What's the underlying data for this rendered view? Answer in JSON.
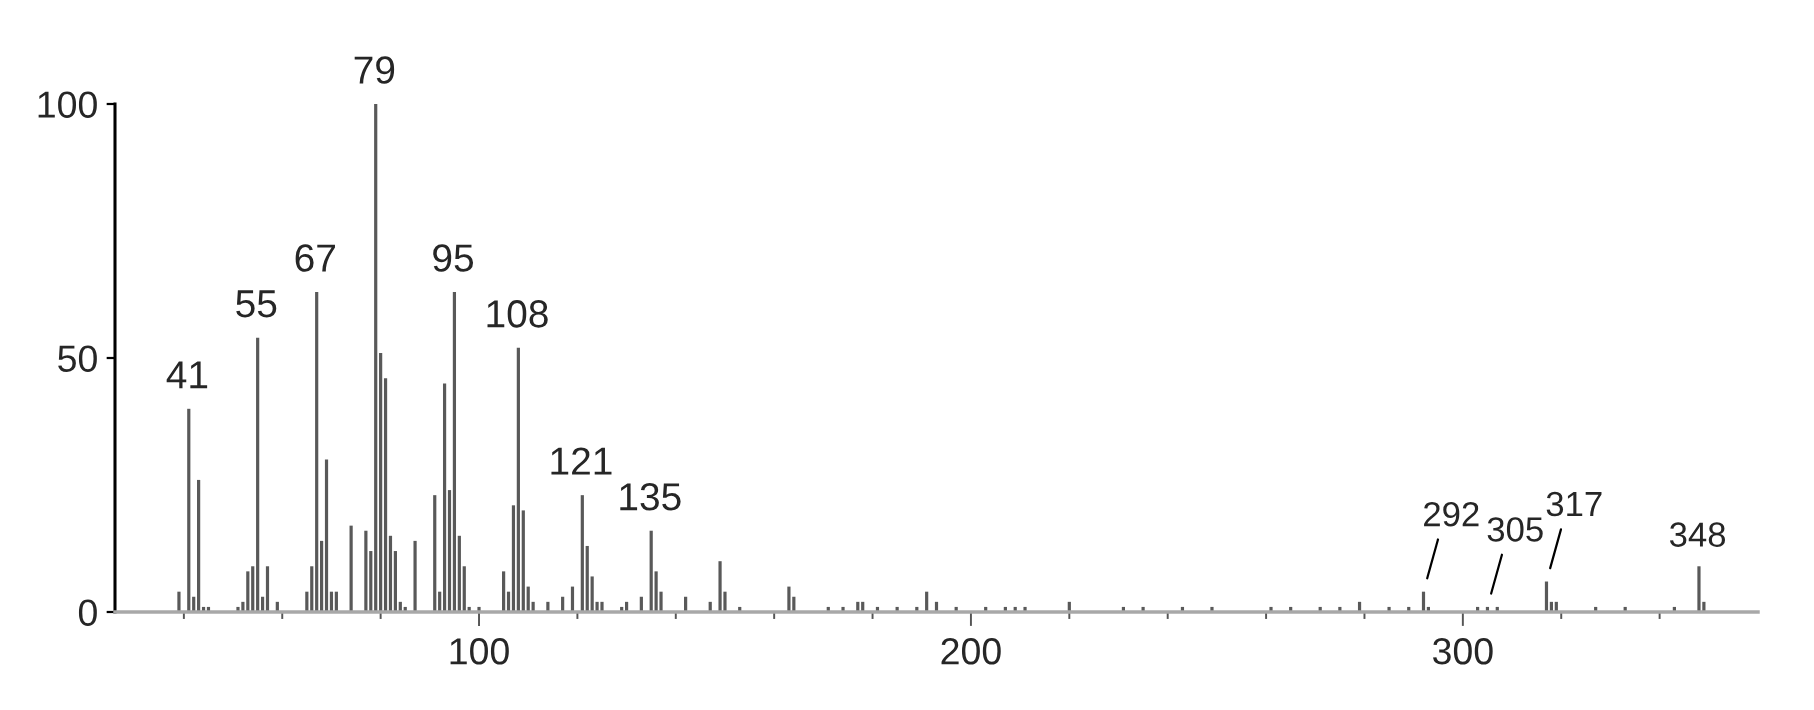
{
  "chart_data": {
    "type": "bar",
    "x": [
      39,
      41,
      42,
      43,
      44,
      45,
      51,
      52,
      53,
      54,
      55,
      56,
      57,
      59,
      65,
      66,
      67,
      68,
      69,
      70,
      71,
      74,
      77,
      78,
      79,
      80,
      81,
      82,
      83,
      84,
      85,
      87,
      91,
      92,
      93,
      94,
      95,
      96,
      97,
      98,
      100,
      105,
      106,
      107,
      108,
      109,
      110,
      111,
      114,
      117,
      119,
      121,
      122,
      123,
      124,
      125,
      129,
      130,
      133,
      135,
      136,
      137,
      142,
      147,
      149,
      150,
      153,
      163,
      164,
      171,
      174,
      177,
      178,
      181,
      185,
      189,
      191,
      193,
      197,
      203,
      207,
      209,
      211,
      220,
      231,
      235,
      243,
      249,
      261,
      265,
      271,
      275,
      279,
      285,
      289,
      292,
      293,
      303,
      305,
      307,
      317,
      318,
      319,
      327,
      333,
      343,
      348,
      349
    ],
    "values": [
      4,
      40,
      3,
      26,
      1,
      1,
      1,
      2,
      8,
      9,
      54,
      3,
      9,
      2,
      4,
      9,
      63,
      14,
      30,
      4,
      4,
      17,
      16,
      12,
      100,
      51,
      46,
      15,
      12,
      2,
      1,
      14,
      23,
      4,
      45,
      24,
      63,
      15,
      9,
      1,
      1,
      8,
      4,
      21,
      52,
      20,
      5,
      2,
      2,
      3,
      5,
      23,
      13,
      7,
      2,
      2,
      1,
      2,
      3,
      16,
      8,
      4,
      3,
      2,
      10,
      4,
      1,
      5,
      3,
      1,
      1,
      2,
      2,
      1,
      1,
      1,
      4,
      2,
      1,
      1,
      1,
      1,
      1,
      2,
      1,
      1,
      1,
      1,
      1,
      1,
      1,
      1,
      2,
      1,
      1,
      4,
      1,
      1,
      1,
      1,
      6,
      2,
      2,
      1,
      1,
      1,
      9,
      2
    ],
    "color": "#595959",
    "xlim": [
      26,
      360
    ],
    "xticks": [
      {
        "value": 40,
        "label": null
      },
      {
        "value": 60,
        "label": null
      },
      {
        "value": 80,
        "label": null
      },
      100,
      {
        "value": 120,
        "label": null
      },
      {
        "value": 140,
        "label": null
      },
      {
        "value": 160,
        "label": null
      },
      {
        "value": 180,
        "label": null
      },
      200,
      {
        "value": 220,
        "label": null
      },
      {
        "value": 240,
        "label": null
      },
      {
        "value": 260,
        "label": null
      },
      {
        "value": 280,
        "label": null
      },
      300,
      {
        "value": 320,
        "label": null
      },
      {
        "value": 340,
        "label": null
      }
    ],
    "ylim": [
      0,
      100
    ],
    "yticks": [
      0,
      50,
      100
    ],
    "annotations": [
      {
        "text": "41",
        "x": 41,
        "y": 40
      },
      {
        "text": "55",
        "x": 55,
        "y": 54
      },
      {
        "text": "67",
        "x": 67,
        "y": 63
      },
      {
        "text": "79",
        "x": 79,
        "y": 100
      },
      {
        "text": "95",
        "x": 95,
        "y": 63
      },
      {
        "text": "108",
        "x": 108,
        "y": 52
      },
      {
        "text": "121",
        "x": 121,
        "y": 23
      },
      {
        "text": "135",
        "x": 135,
        "y": 16
      },
      {
        "text": "292",
        "x": 292,
        "y": 4
      },
      {
        "text": "305",
        "x": 305,
        "y": 1
      },
      {
        "text": "317",
        "x": 317,
        "y": 6
      },
      {
        "text": "348",
        "x": 348,
        "y": 9
      }
    ]
  }
}
